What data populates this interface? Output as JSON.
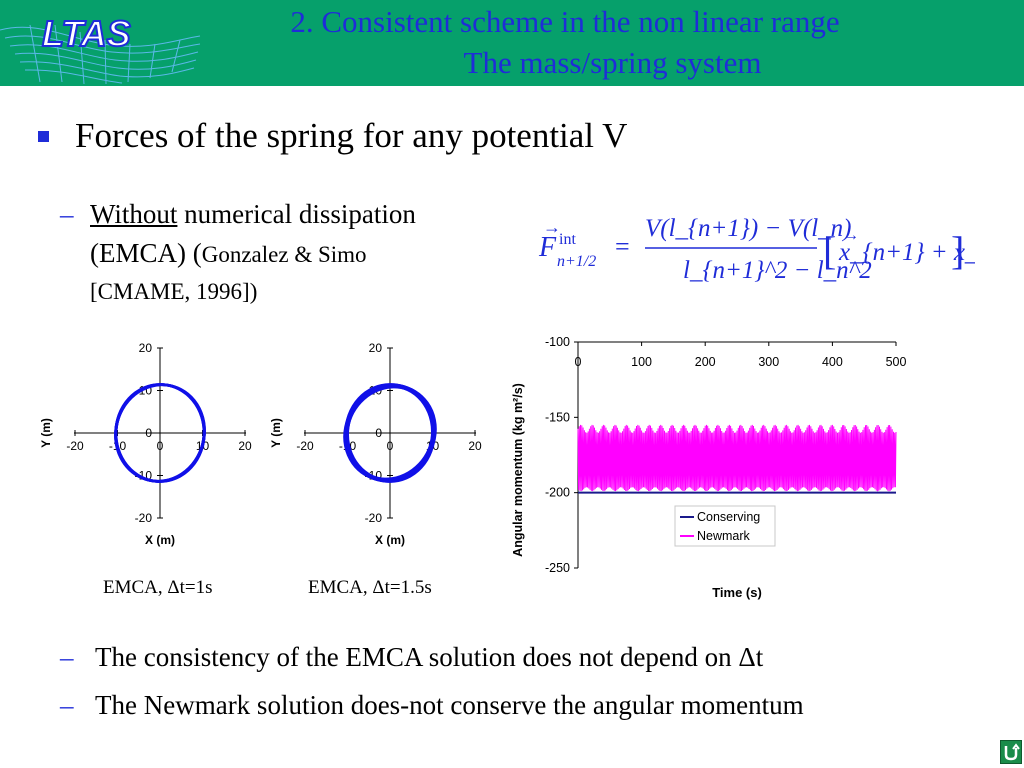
{
  "header": {
    "logo_text": "LTAS",
    "title_line1": "2. Consistent scheme in the non linear range",
    "title_line2": "The mass/spring system"
  },
  "bullet": {
    "text": "Forces of the spring for any potential V"
  },
  "sub1": {
    "dash": "–",
    "underlined": "Without",
    "rest": " numerical dissipation",
    "line2_main": "(EMCA) (",
    "line2_small": "Gonzalez & Simo",
    "line3": "[CMAME, 1996])"
  },
  "formula": {
    "lhs_symbol": "F",
    "lhs_sup": "int",
    "lhs_sub": "n+1/2",
    "equals": "=",
    "numerator": "V(l_{n+1}) − V(l_n)",
    "denominator": "l_{n+1}^2 − l_n^2",
    "bracket_content": "x_{n+1} + x_n"
  },
  "captions": {
    "left": "EMCA, Δt=1s",
    "middle": "EMCA, Δt=1.5s"
  },
  "bottom": {
    "dash": "–",
    "line1": "The consistency of the EMCA solution does not depend on Δt",
    "line2": "The Newmark solution does-not conserve the angular momentum"
  },
  "chart_data": [
    {
      "type": "line",
      "title": "",
      "xlabel": "X (m)",
      "ylabel": "Y (m)",
      "xlim": [
        -20,
        20
      ],
      "ylim": [
        -20,
        20
      ],
      "xticks": [
        "-20",
        "-10",
        "0",
        "10",
        "20"
      ],
      "yticks": [
        "20",
        "10",
        "0",
        "-10",
        "-20"
      ],
      "series": [
        {
          "color": "#1010e8",
          "x_range": [
            -10.5,
            10.5
          ],
          "y_range": [
            -11.5,
            11.5
          ]
        }
      ]
    },
    {
      "type": "line",
      "title": "",
      "xlabel": "X (m)",
      "ylabel": "Y (m)",
      "xlim": [
        -20,
        20
      ],
      "ylim": [
        -20,
        20
      ],
      "xticks": [
        "-20",
        "-10",
        "0",
        "10",
        "20"
      ],
      "yticks": [
        "20",
        "10",
        "0",
        "-10",
        "-20"
      ],
      "series": [
        {
          "color": "#1010e8",
          "x_range": [
            -10.5,
            10.5
          ],
          "y_range": [
            -11.5,
            11.5
          ]
        }
      ]
    },
    {
      "type": "line",
      "title": "",
      "xlabel": "Time (s)",
      "ylabel": "Angular momentum (kg m²/s)",
      "xlim": [
        0,
        500
      ],
      "ylim": [
        -250,
        -100
      ],
      "xticks": [
        "0",
        "100",
        "200",
        "300",
        "400",
        "500"
      ],
      "yticks": [
        "-100",
        "-150",
        "-200",
        "-250"
      ],
      "legend_position": "center-right",
      "series": [
        {
          "name": "Conserving",
          "color": "#1a1a8c",
          "constant_value": -200
        },
        {
          "name": "Newmark",
          "color": "#ff00ff",
          "oscillation_range": [
            -199,
            -155
          ]
        }
      ]
    }
  ]
}
